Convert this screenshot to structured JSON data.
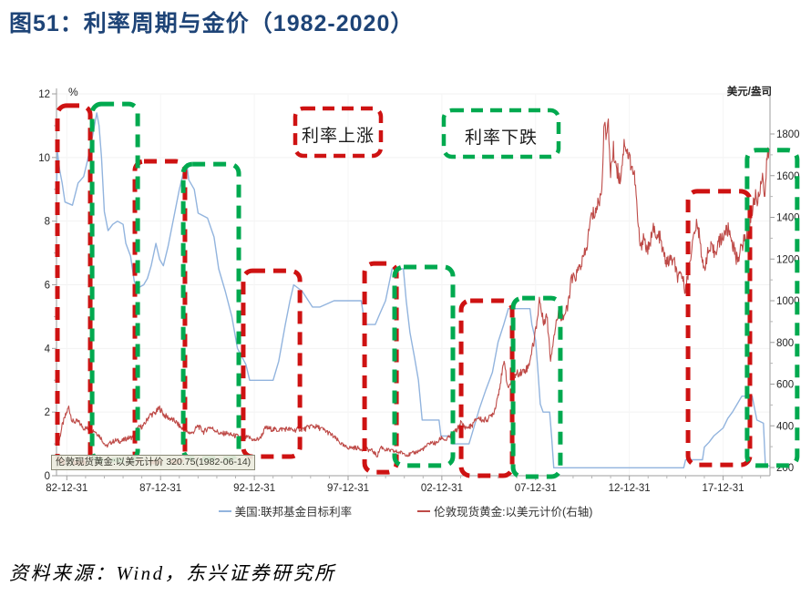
{
  "figure": {
    "title": "图51：利率周期与金价（1982-2020）",
    "source": "资料来源：Wind，东兴证券研究所"
  },
  "chart_data": {
    "type": "line",
    "title": "利率周期与金价（1982-2020）",
    "grid": "faint",
    "legend_position": "bottom-center",
    "x_axis": {
      "range": [
        1982.45,
        2020.5
      ],
      "tick_labels": [
        "82-12-31",
        "87-12-31",
        "92-12-31",
        "97-12-31",
        "02-12-31",
        "07-12-31",
        "12-12-31",
        "17-12-31"
      ],
      "tick_years": [
        1983,
        1988,
        1993,
        1998,
        2003,
        2008,
        2013,
        2018
      ],
      "minor_step": 1
    },
    "left_axis": {
      "unit": "%",
      "range": [
        0,
        12
      ],
      "tick_values": [
        0,
        2,
        4,
        6,
        8,
        10,
        12
      ],
      "minor_values": [
        1,
        3,
        5,
        7,
        9,
        11
      ]
    },
    "right_axis": {
      "unit": "美元/盎司",
      "range": [
        200,
        1800
      ],
      "tick_values": [
        200,
        400,
        600,
        800,
        1000,
        1200,
        1400,
        1600,
        1800
      ],
      "minor_values": [
        300,
        500,
        700,
        900,
        1100,
        1300,
        1500,
        1700
      ]
    },
    "series": [
      {
        "name": "美国:联邦基金目标利率",
        "axis": "left",
        "color": "#92B4DE",
        "jitter": 0,
        "points": [
          [
            1982.45,
            8.9
          ],
          [
            1982.5,
            10.2
          ],
          [
            1982.62,
            9.6
          ],
          [
            1982.75,
            9.2
          ],
          [
            1982.9,
            8.6
          ],
          [
            1983.3,
            8.5
          ],
          [
            1983.6,
            9.2
          ],
          [
            1983.9,
            9.4
          ],
          [
            1984.1,
            9.9
          ],
          [
            1984.35,
            10.6
          ],
          [
            1984.6,
            11.4
          ],
          [
            1984.72,
            11.0
          ],
          [
            1984.85,
            10.0
          ],
          [
            1985.0,
            8.3
          ],
          [
            1985.2,
            7.7
          ],
          [
            1985.45,
            7.9
          ],
          [
            1985.7,
            8.0
          ],
          [
            1986.0,
            7.9
          ],
          [
            1986.15,
            7.3
          ],
          [
            1986.4,
            6.9
          ],
          [
            1986.6,
            6.1
          ],
          [
            1986.8,
            5.9
          ],
          [
            1987.1,
            6.0
          ],
          [
            1987.3,
            6.2
          ],
          [
            1987.5,
            6.6
          ],
          [
            1987.75,
            7.3
          ],
          [
            1987.95,
            6.8
          ],
          [
            1988.15,
            6.6
          ],
          [
            1988.4,
            7.2
          ],
          [
            1988.7,
            8.1
          ],
          [
            1989.0,
            9.0
          ],
          [
            1989.25,
            9.6
          ],
          [
            1989.4,
            9.8
          ],
          [
            1989.5,
            9.3
          ],
          [
            1989.8,
            9.0
          ],
          [
            1990.0,
            8.25
          ],
          [
            1990.5,
            8.1
          ],
          [
            1990.85,
            7.5
          ],
          [
            1991.1,
            6.5
          ],
          [
            1991.45,
            5.8
          ],
          [
            1991.8,
            5.0
          ],
          [
            1992.1,
            4.0
          ],
          [
            1992.55,
            3.5
          ],
          [
            1992.75,
            3.0
          ],
          [
            1994.0,
            3.0
          ],
          [
            1994.3,
            3.6
          ],
          [
            1994.65,
            4.75
          ],
          [
            1994.9,
            5.5
          ],
          [
            1995.1,
            6.0
          ],
          [
            1995.55,
            5.8
          ],
          [
            1996.1,
            5.3
          ],
          [
            1996.5,
            5.3
          ],
          [
            1997.25,
            5.5
          ],
          [
            1998.7,
            5.5
          ],
          [
            1998.9,
            4.75
          ],
          [
            1999.45,
            4.75
          ],
          [
            1999.7,
            5.1
          ],
          [
            2000.0,
            5.5
          ],
          [
            2000.35,
            6.5
          ],
          [
            2000.95,
            6.5
          ],
          [
            2001.1,
            5.5
          ],
          [
            2001.3,
            4.5
          ],
          [
            2001.55,
            3.7
          ],
          [
            2001.75,
            3.0
          ],
          [
            2001.95,
            1.75
          ],
          [
            2002.85,
            1.75
          ],
          [
            2002.95,
            1.25
          ],
          [
            2003.45,
            1.25
          ],
          [
            2003.55,
            1.0
          ],
          [
            2004.45,
            1.0
          ],
          [
            2004.7,
            1.5
          ],
          [
            2005.0,
            2.1
          ],
          [
            2005.35,
            2.7
          ],
          [
            2005.7,
            3.25
          ],
          [
            2006.0,
            4.2
          ],
          [
            2006.3,
            4.75
          ],
          [
            2006.55,
            5.25
          ],
          [
            2007.7,
            5.25
          ],
          [
            2007.8,
            4.75
          ],
          [
            2008.0,
            4.25
          ],
          [
            2008.1,
            3.5
          ],
          [
            2008.25,
            2.25
          ],
          [
            2008.4,
            2.0
          ],
          [
            2008.75,
            2.0
          ],
          [
            2008.85,
            1.25
          ],
          [
            2008.97,
            0.25
          ],
          [
            2015.9,
            0.25
          ],
          [
            2016.0,
            0.5
          ],
          [
            2016.9,
            0.5
          ],
          [
            2017.0,
            0.9
          ],
          [
            2017.25,
            1.05
          ],
          [
            2017.5,
            1.25
          ],
          [
            2018.0,
            1.5
          ],
          [
            2018.25,
            1.8
          ],
          [
            2018.5,
            2.0
          ],
          [
            2018.75,
            2.25
          ],
          [
            2019.0,
            2.5
          ],
          [
            2019.55,
            2.5
          ],
          [
            2019.65,
            2.2
          ],
          [
            2019.8,
            1.75
          ],
          [
            2020.15,
            1.65
          ],
          [
            2020.25,
            0.35
          ],
          [
            2020.48,
            0.3
          ]
        ]
      },
      {
        "name": "伦敦现货黄金:以美元计价(右轴)",
        "axis": "right",
        "color": "#BE4B48",
        "jitter": 1,
        "points": [
          [
            1982.45,
            320
          ],
          [
            1982.6,
            330
          ],
          [
            1982.75,
            400
          ],
          [
            1982.9,
            440
          ],
          [
            1983.1,
            490
          ],
          [
            1983.3,
            420
          ],
          [
            1983.6,
            420
          ],
          [
            1983.9,
            390
          ],
          [
            1984.2,
            385
          ],
          [
            1984.5,
            375
          ],
          [
            1984.8,
            345
          ],
          [
            1985.1,
            300
          ],
          [
            1985.35,
            320
          ],
          [
            1985.6,
            330
          ],
          [
            1985.9,
            325
          ],
          [
            1986.2,
            340
          ],
          [
            1986.5,
            345
          ],
          [
            1986.8,
            390
          ],
          [
            1987.1,
            400
          ],
          [
            1987.4,
            450
          ],
          [
            1987.7,
            460
          ],
          [
            1987.95,
            485
          ],
          [
            1988.2,
            450
          ],
          [
            1988.5,
            435
          ],
          [
            1988.8,
            420
          ],
          [
            1989.1,
            390
          ],
          [
            1989.4,
            370
          ],
          [
            1989.7,
            365
          ],
          [
            1990.0,
            400
          ],
          [
            1990.3,
            370
          ],
          [
            1990.6,
            395
          ],
          [
            1990.9,
            380
          ],
          [
            1991.2,
            360
          ],
          [
            1991.5,
            365
          ],
          [
            1991.8,
            355
          ],
          [
            1992.1,
            350
          ],
          [
            1992.4,
            340
          ],
          [
            1992.7,
            345
          ],
          [
            1993.0,
            330
          ],
          [
            1993.3,
            340
          ],
          [
            1993.6,
            390
          ],
          [
            1993.9,
            385
          ],
          [
            1994.2,
            380
          ],
          [
            1994.5,
            385
          ],
          [
            1994.8,
            385
          ],
          [
            1995.1,
            378
          ],
          [
            1995.4,
            385
          ],
          [
            1995.7,
            384
          ],
          [
            1996.0,
            400
          ],
          [
            1996.3,
            395
          ],
          [
            1996.6,
            385
          ],
          [
            1996.9,
            370
          ],
          [
            1997.2,
            350
          ],
          [
            1997.5,
            325
          ],
          [
            1997.8,
            300
          ],
          [
            1998.1,
            295
          ],
          [
            1998.4,
            295
          ],
          [
            1998.7,
            290
          ],
          [
            1999.0,
            287
          ],
          [
            1999.3,
            280
          ],
          [
            1999.55,
            255
          ],
          [
            1999.75,
            300
          ],
          [
            2000.0,
            285
          ],
          [
            2000.3,
            280
          ],
          [
            2000.6,
            275
          ],
          [
            2000.9,
            270
          ],
          [
            2001.2,
            260
          ],
          [
            2001.5,
            270
          ],
          [
            2001.8,
            280
          ],
          [
            2002.1,
            295
          ],
          [
            2002.4,
            320
          ],
          [
            2002.7,
            315
          ],
          [
            2003.0,
            345
          ],
          [
            2003.2,
            330
          ],
          [
            2003.5,
            355
          ],
          [
            2003.8,
            380
          ],
          [
            2004.0,
            415
          ],
          [
            2004.3,
            390
          ],
          [
            2004.6,
            400
          ],
          [
            2004.9,
            440
          ],
          [
            2005.2,
            425
          ],
          [
            2005.5,
            435
          ],
          [
            2005.8,
            470
          ],
          [
            2006.0,
            550
          ],
          [
            2006.35,
            715
          ],
          [
            2006.5,
            580
          ],
          [
            2006.8,
            625
          ],
          [
            2007.0,
            650
          ],
          [
            2007.3,
            660
          ],
          [
            2007.6,
            680
          ],
          [
            2007.9,
            800
          ],
          [
            2008.1,
            920
          ],
          [
            2008.2,
            1010
          ],
          [
            2008.4,
            900
          ],
          [
            2008.6,
            930
          ],
          [
            2008.8,
            720
          ],
          [
            2008.95,
            820
          ],
          [
            2009.1,
            900
          ],
          [
            2009.25,
            940
          ],
          [
            2009.45,
            920
          ],
          [
            2009.7,
            960
          ],
          [
            2009.9,
            1100
          ],
          [
            2010.1,
            1110
          ],
          [
            2010.4,
            1170
          ],
          [
            2010.7,
            1240
          ],
          [
            2010.95,
            1400
          ],
          [
            2011.2,
            1430
          ],
          [
            2011.5,
            1510
          ],
          [
            2011.7,
            1900
          ],
          [
            2011.78,
            1780
          ],
          [
            2011.88,
            1830
          ],
          [
            2012.0,
            1620
          ],
          [
            2012.15,
            1720
          ],
          [
            2012.3,
            1650
          ],
          [
            2012.5,
            1580
          ],
          [
            2012.75,
            1770
          ],
          [
            2012.9,
            1710
          ],
          [
            2013.1,
            1660
          ],
          [
            2013.3,
            1580
          ],
          [
            2013.45,
            1380
          ],
          [
            2013.6,
            1240
          ],
          [
            2013.75,
            1320
          ],
          [
            2013.9,
            1250
          ],
          [
            2014.1,
            1250
          ],
          [
            2014.25,
            1380
          ],
          [
            2014.4,
            1290
          ],
          [
            2014.6,
            1310
          ],
          [
            2014.8,
            1230
          ],
          [
            2015.0,
            1180
          ],
          [
            2015.2,
            1200
          ],
          [
            2015.4,
            1180
          ],
          [
            2015.6,
            1100
          ],
          [
            2015.8,
            1130
          ],
          [
            2015.95,
            1060
          ],
          [
            2016.1,
            1100
          ],
          [
            2016.3,
            1240
          ],
          [
            2016.55,
            1360
          ],
          [
            2016.75,
            1320
          ],
          [
            2016.95,
            1140
          ],
          [
            2017.15,
            1220
          ],
          [
            2017.35,
            1250
          ],
          [
            2017.55,
            1230
          ],
          [
            2017.75,
            1280
          ],
          [
            2017.95,
            1300
          ],
          [
            2018.1,
            1330
          ],
          [
            2018.3,
            1340
          ],
          [
            2018.5,
            1280
          ],
          [
            2018.7,
            1200
          ],
          [
            2018.9,
            1230
          ],
          [
            2019.1,
            1290
          ],
          [
            2019.3,
            1300
          ],
          [
            2019.5,
            1410
          ],
          [
            2019.7,
            1500
          ],
          [
            2019.85,
            1480
          ],
          [
            2020.0,
            1560
          ],
          [
            2020.1,
            1630
          ],
          [
            2020.2,
            1480
          ],
          [
            2020.35,
            1680
          ],
          [
            2020.45,
            1730
          ]
        ]
      }
    ],
    "annotations": {
      "rate_up": {
        "label": "利率上涨",
        "color": "#CE1212"
      },
      "rate_down": {
        "label": "利率下跌",
        "color": "#00A94F"
      }
    },
    "rate_up_boxes": [
      [
        1982.5,
        1984.25,
        11.63,
        0.4
      ],
      [
        1986.63,
        1989.3,
        9.88,
        0.43
      ],
      [
        1992.41,
        1995.43,
        6.44,
        0.6
      ],
      [
        1998.88,
        2000.58,
        6.67,
        0.11
      ],
      [
        2004.03,
        2006.75,
        5.5,
        0.0
      ],
      [
        2016.13,
        2019.43,
        8.94,
        0.34
      ]
    ],
    "rate_down_boxes": [
      [
        1984.35,
        1986.78,
        11.68,
        0.49
      ],
      [
        1989.21,
        1992.17,
        9.79,
        0.54
      ],
      [
        2000.48,
        2003.59,
        6.56,
        0.32
      ],
      [
        2006.8,
        2009.32,
        5.58,
        -0.03
      ],
      [
        2019.28,
        2021.95,
        10.23,
        0.32
      ]
    ],
    "tooltip": {
      "text": "伦敦现货黄金:以美元计价 320.75(1982-06-14)"
    },
    "legend": {
      "entries": [
        {
          "label": "美国:联邦基金目标利率",
          "color": "#92B4DE"
        },
        {
          "label": "伦敦现货黄金:以美元计价(右轴)",
          "color": "#BE4B48"
        }
      ]
    }
  }
}
